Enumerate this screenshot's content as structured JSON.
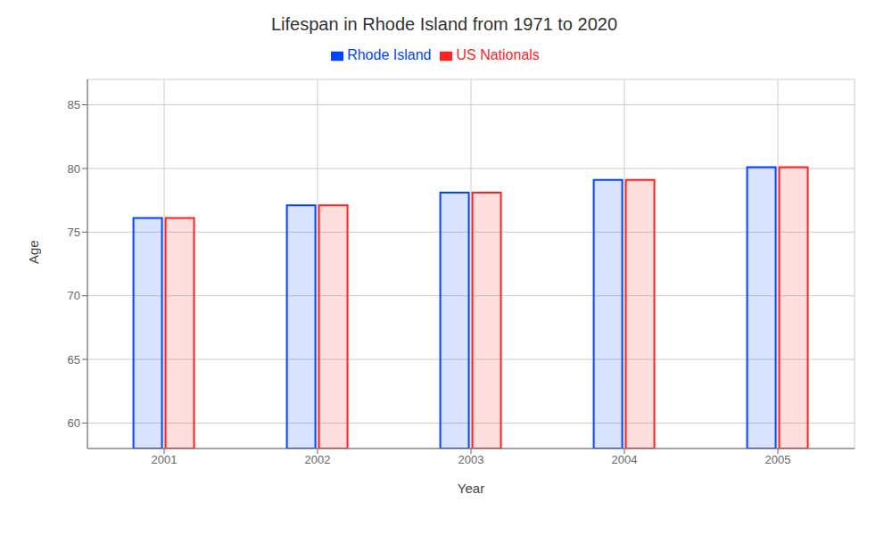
{
  "chart_data": {
    "type": "bar",
    "title": "Lifespan in Rhode Island from 1971 to 2020",
    "x_label": "Year",
    "y_label": "Age",
    "categories": [
      "2001",
      "2002",
      "2003",
      "2004",
      "2005"
    ],
    "series": [
      {
        "name": "Rhode Island",
        "color": "#0044ff",
        "values": [
          76.1,
          77.1,
          78.1,
          79.1,
          80.1
        ]
      },
      {
        "name": "US Nationals",
        "color": "#ff2222",
        "values": [
          76.1,
          77.1,
          78.1,
          79.1,
          80.1
        ]
      }
    ],
    "ylim": [
      58,
      87
    ],
    "yticks": [
      60,
      65,
      70,
      75,
      80,
      85
    ],
    "grid": true,
    "legend": "top"
  }
}
